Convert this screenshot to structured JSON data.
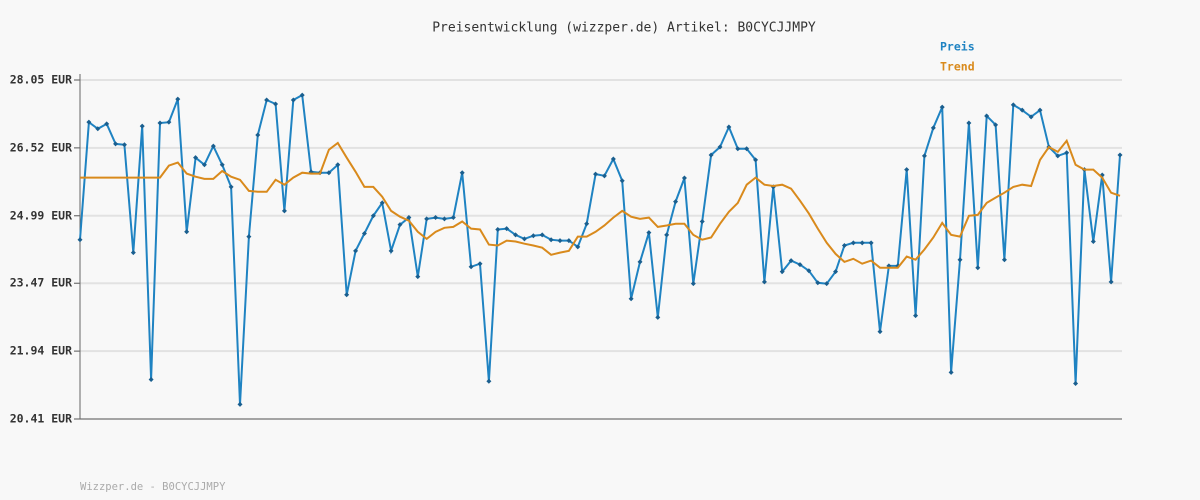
{
  "chart_data": {
    "type": "line",
    "title": "Preisentwicklung (wizzper.de) Artikel: B0CYCJJMPY",
    "footer": "Wizzper.de - B0CYCJJMPY",
    "ylim": [
      20.41,
      28.05
    ],
    "yticks": [
      {
        "value": 20.41,
        "label": "20.41 EUR"
      },
      {
        "value": 21.94,
        "label": "21.94 EUR"
      },
      {
        "value": 23.47,
        "label": "23.47 EUR"
      },
      {
        "value": 24.99,
        "label": "24.99 EUR"
      },
      {
        "value": 26.52,
        "label": "26.52 EUR"
      },
      {
        "value": 28.05,
        "label": "28.05 EUR"
      }
    ],
    "grid": true,
    "legend": "top-right",
    "series": [
      {
        "name": "Preis",
        "color": "#1f83c2",
        "markers": true,
        "values": [
          24.45,
          27.1,
          26.95,
          27.06,
          26.61,
          26.59,
          24.16,
          27.01,
          21.3,
          27.08,
          27.1,
          27.62,
          24.63,
          26.3,
          26.14,
          26.56,
          26.14,
          25.64,
          20.74,
          24.52,
          26.81,
          27.6,
          27.51,
          25.1,
          27.6,
          27.71,
          25.98,
          25.96,
          25.96,
          26.14,
          23.21,
          24.2,
          24.59,
          24.99,
          25.28,
          24.2,
          24.79,
          24.95,
          23.62,
          24.92,
          24.95,
          24.92,
          24.95,
          25.96,
          23.84,
          23.91,
          21.26,
          24.68,
          24.7,
          24.56,
          24.47,
          24.54,
          24.56,
          24.45,
          24.43,
          24.43,
          24.29,
          24.81,
          25.93,
          25.89,
          26.27,
          25.78,
          23.12,
          23.95,
          24.61,
          22.7,
          24.56,
          25.31,
          25.84,
          23.46,
          24.86,
          26.36,
          26.54,
          26.99,
          26.5,
          26.5,
          26.25,
          23.5,
          25.64,
          23.73,
          23.98,
          23.89,
          23.75,
          23.48,
          23.46,
          23.73,
          24.32,
          24.38,
          24.38,
          24.38,
          22.38,
          23.86,
          23.86,
          26.03,
          22.74,
          26.34,
          26.97,
          27.44,
          21.46,
          24.0,
          27.08,
          23.82,
          27.24,
          27.04,
          24.0,
          27.49,
          27.37,
          27.22,
          27.37,
          26.54,
          26.34,
          26.41,
          21.21,
          26.03,
          24.41,
          25.91,
          23.5,
          26.36
        ]
      },
      {
        "name": "Trend",
        "color": "#d98a1c",
        "markers": false,
        "values": [
          25.85,
          25.85,
          25.85,
          25.85,
          25.85,
          25.85,
          25.85,
          25.85,
          25.85,
          25.85,
          26.12,
          26.19,
          25.94,
          25.87,
          25.82,
          25.82,
          26.0,
          25.87,
          25.8,
          25.55,
          25.53,
          25.53,
          25.8,
          25.69,
          25.85,
          25.96,
          25.94,
          25.94,
          26.48,
          26.63,
          26.3,
          25.98,
          25.64,
          25.64,
          25.42,
          25.1,
          24.97,
          24.88,
          24.63,
          24.47,
          24.63,
          24.72,
          24.74,
          24.86,
          24.7,
          24.68,
          24.34,
          24.32,
          24.43,
          24.41,
          24.36,
          24.32,
          24.27,
          24.11,
          24.16,
          24.2,
          24.52,
          24.52,
          24.63,
          24.77,
          24.95,
          25.1,
          24.97,
          24.92,
          24.95,
          24.74,
          24.77,
          24.81,
          24.81,
          24.56,
          24.45,
          24.5,
          24.81,
          25.08,
          25.28,
          25.69,
          25.85,
          25.69,
          25.66,
          25.69,
          25.6,
          25.33,
          25.04,
          24.7,
          24.38,
          24.13,
          23.95,
          24.02,
          23.91,
          23.98,
          23.82,
          23.82,
          23.82,
          24.07,
          24.0,
          24.23,
          24.5,
          24.83,
          24.56,
          24.52,
          24.99,
          25.01,
          25.28,
          25.4,
          25.51,
          25.64,
          25.69,
          25.66,
          26.25,
          26.54,
          26.43,
          26.68,
          26.14,
          26.03,
          26.03,
          25.85,
          25.51,
          25.44
        ]
      }
    ]
  }
}
